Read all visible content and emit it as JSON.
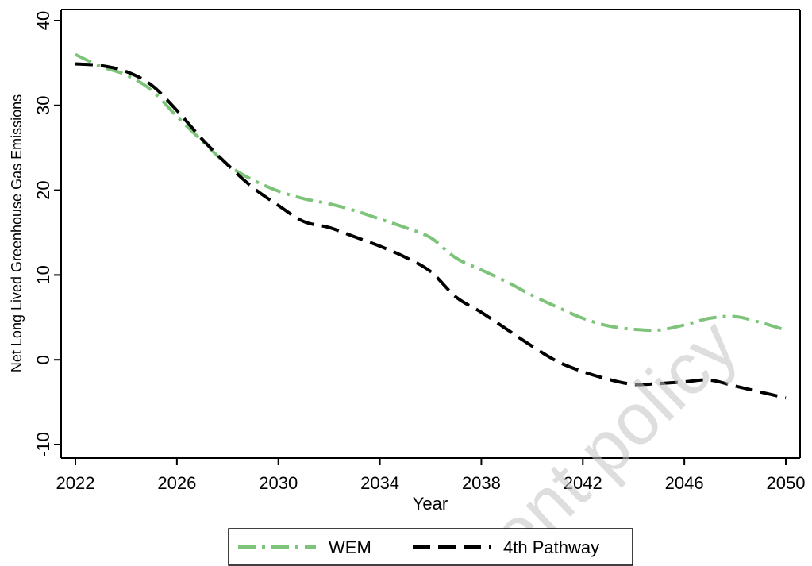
{
  "chart_data": {
    "type": "line",
    "title": "",
    "xlabel": "Year",
    "ylabel": "Net Long Lived Greenhouse Gas Emissions",
    "xlim": [
      2022,
      2050
    ],
    "ylim": [
      -10,
      40
    ],
    "xticks": [
      2022,
      2026,
      2030,
      2034,
      2038,
      2042,
      2046,
      2050
    ],
    "yticks": [
      -10,
      0,
      10,
      20,
      30,
      40
    ],
    "xtick_labels": [
      "2022",
      "2026",
      "2030",
      "2034",
      "2038",
      "2042",
      "2046",
      "2050"
    ],
    "ytick_labels": [
      "-10",
      "0",
      "10",
      "20",
      "30",
      "40"
    ],
    "grid": false,
    "legend_position": "bottom",
    "watermark": "ent policy",
    "series": [
      {
        "name": "WEM",
        "color": "#7dc47a",
        "dash": "dash-dot",
        "x": [
          2022,
          2023,
          2024,
          2025,
          2026,
          2027,
          2028,
          2029,
          2030,
          2031,
          2032,
          2033,
          2034,
          2035,
          2036,
          2037,
          2038,
          2039,
          2040,
          2041,
          2042,
          2043,
          2044,
          2045,
          2046,
          2047,
          2048,
          2049,
          2050
        ],
        "y": [
          36.0,
          34.6,
          33.6,
          31.8,
          28.7,
          25.8,
          23.0,
          21.2,
          19.9,
          19.0,
          18.4,
          17.6,
          16.6,
          15.6,
          14.4,
          12.0,
          10.6,
          9.2,
          7.6,
          6.2,
          4.9,
          4.0,
          3.6,
          3.5,
          4.1,
          4.9,
          5.1,
          4.4,
          3.5
        ]
      },
      {
        "name": "4th Pathway",
        "color": "#000000",
        "dash": "dash",
        "x": [
          2022,
          2023,
          2024,
          2025,
          2026,
          2027,
          2028,
          2029,
          2030,
          2031,
          2032,
          2033,
          2034,
          2035,
          2036,
          2037,
          2038,
          2039,
          2040,
          2041,
          2042,
          2043,
          2044,
          2045,
          2046,
          2047,
          2048,
          2049,
          2050
        ],
        "y": [
          34.9,
          34.7,
          34.0,
          32.4,
          29.4,
          26.0,
          23.0,
          20.3,
          18.2,
          16.3,
          15.6,
          14.5,
          13.4,
          12.1,
          10.4,
          7.4,
          5.6,
          3.6,
          1.6,
          -0.2,
          -1.4,
          -2.3,
          -2.9,
          -2.8,
          -2.6,
          -2.4,
          -3.1,
          -3.8,
          -4.5
        ]
      }
    ]
  }
}
